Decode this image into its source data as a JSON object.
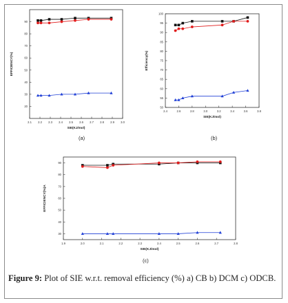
{
  "caption": {
    "label": "Figure 9:",
    "text": "Plot of SIE w.r.t. removal efficiency (%) a) CB b) DCM c) ODCB."
  },
  "colors": {
    "black": "#111111",
    "red": "#e01b1b",
    "blue": "#1f3fd6"
  },
  "chart_data": [
    {
      "type": "line",
      "panel_label": "(a)",
      "xlabel": "SIE(KJ/mol)",
      "ylabel": "EFFICIENCY(%)",
      "xlim": [
        2.1,
        3.0
      ],
      "ylim": [
        10,
        100
      ],
      "xticks": [
        "2.1",
        "2.2",
        "2.3",
        "2.4",
        "2.5",
        "2.6",
        "2.7",
        "2.8",
        "2.9",
        "3.0"
      ],
      "yticks": [
        "20",
        "30",
        "40",
        "50",
        "60",
        "70",
        "80",
        "90"
      ],
      "series": [
        {
          "color": "#111111",
          "marker": "square",
          "x": [
            2.18,
            2.21,
            2.29,
            2.41,
            2.54,
            2.67,
            2.89
          ],
          "y": [
            91,
            91,
            92,
            92,
            93,
            93,
            93
          ]
        },
        {
          "color": "#e01b1b",
          "marker": "circle",
          "x": [
            2.18,
            2.21,
            2.29,
            2.41,
            2.54,
            2.67,
            2.89
          ],
          "y": [
            89,
            89,
            89,
            90,
            91,
            92,
            92
          ]
        },
        {
          "color": "#1f3fd6",
          "marker": "triangle",
          "x": [
            2.18,
            2.21,
            2.29,
            2.41,
            2.54,
            2.67,
            2.89
          ],
          "y": [
            29,
            29,
            29,
            30,
            30,
            31,
            31
          ]
        }
      ]
    },
    {
      "type": "line",
      "panel_label": "(b)",
      "xlabel": "SIE(KJ/mol)",
      "ylabel": "Efficiency(%)",
      "xlim": [
        2.4,
        3.8
      ],
      "ylim": [
        50,
        100
      ],
      "xticks": [
        "2.4",
        "2.6",
        "2.8",
        "3.0",
        "3.2",
        "3.4",
        "3.6",
        "3.8"
      ],
      "yticks": [
        "50",
        "55",
        "60",
        "65",
        "70",
        "75",
        "80",
        "85",
        "90",
        "95",
        "100"
      ],
      "series": [
        {
          "color": "#111111",
          "marker": "square",
          "x": [
            2.55,
            2.6,
            2.66,
            2.8,
            3.25,
            3.42,
            3.63
          ],
          "y": [
            94,
            94,
            95,
            96,
            96,
            96,
            98
          ]
        },
        {
          "color": "#e01b1b",
          "marker": "circle",
          "x": [
            2.55,
            2.6,
            2.66,
            2.8,
            3.25,
            3.42,
            3.63
          ],
          "y": [
            91,
            92,
            92,
            93,
            94,
            96,
            96
          ]
        },
        {
          "color": "#1f3fd6",
          "marker": "triangle",
          "x": [
            2.55,
            2.6,
            2.66,
            2.8,
            3.25,
            3.42,
            3.63
          ],
          "y": [
            54,
            54,
            55,
            56,
            56,
            58,
            59
          ]
        }
      ]
    },
    {
      "type": "line",
      "panel_label": "(c)",
      "xlabel": "SIE(KJ/mol)",
      "ylabel": "EFFICIENCY(%)A",
      "xlim": [
        1.9,
        2.8
      ],
      "ylim": [
        25,
        95
      ],
      "xticks": [
        "1.9",
        "2.0",
        "2.1",
        "2.2",
        "2.3",
        "2.4",
        "2.5",
        "2.6",
        "2.7",
        "2.8"
      ],
      "yticks": [
        "30",
        "40",
        "50",
        "60",
        "70",
        "80",
        "90"
      ],
      "series": [
        {
          "color": "#111111",
          "marker": "square",
          "x": [
            2.0,
            2.13,
            2.16,
            2.4,
            2.5,
            2.6,
            2.72
          ],
          "y": [
            88,
            88,
            89,
            89,
            90,
            90,
            90
          ]
        },
        {
          "color": "#e01b1b",
          "marker": "circle",
          "x": [
            2.0,
            2.13,
            2.16,
            2.4,
            2.5,
            2.6,
            2.72
          ],
          "y": [
            87,
            86,
            88,
            90,
            90,
            91,
            91
          ]
        },
        {
          "color": "#1f3fd6",
          "marker": "triangle",
          "x": [
            2.0,
            2.13,
            2.16,
            2.4,
            2.5,
            2.6,
            2.72
          ],
          "y": [
            30,
            30,
            30,
            30,
            30,
            31,
            31
          ]
        }
      ]
    }
  ]
}
